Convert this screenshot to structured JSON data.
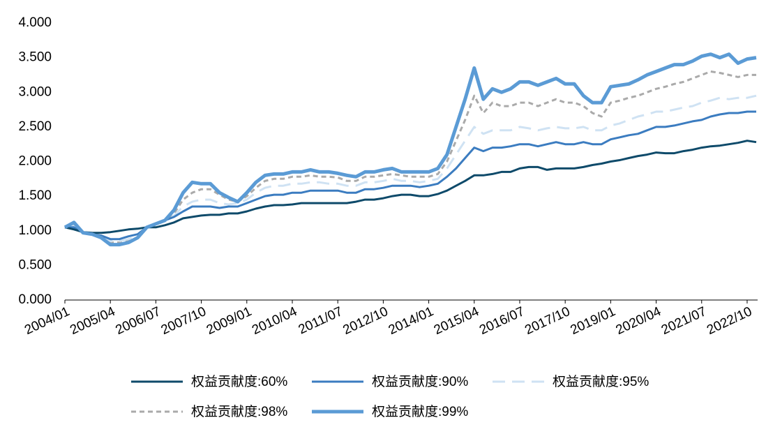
{
  "chart_data": {
    "type": "line",
    "categories": [
      "2004/01",
      null,
      null,
      null,
      null,
      "2005/04",
      null,
      null,
      null,
      null,
      "2006/07",
      null,
      null,
      null,
      null,
      "2007/10",
      null,
      null,
      null,
      null,
      "2009/01",
      null,
      null,
      null,
      null,
      "2010/04",
      null,
      null,
      null,
      null,
      "2011/07",
      null,
      null,
      null,
      null,
      "2012/10",
      null,
      null,
      null,
      null,
      "2014/01",
      null,
      null,
      null,
      null,
      "2015/04",
      null,
      null,
      null,
      null,
      "2016/07",
      null,
      null,
      null,
      null,
      "2017/10",
      null,
      null,
      null,
      null,
      "2019/01",
      null,
      null,
      null,
      null,
      "2020/04",
      null,
      null,
      null,
      null,
      "2021/07",
      null,
      null,
      null,
      null,
      "2022/10",
      null
    ],
    "ylim": [
      0,
      4
    ],
    "yticks": [
      {
        "value": 0,
        "label": "0.000"
      },
      {
        "value": 0.5,
        "label": "0.500"
      },
      {
        "value": 1,
        "label": "1.000"
      },
      {
        "value": 1.5,
        "label": "1.500"
      },
      {
        "value": 2,
        "label": "2.000"
      },
      {
        "value": 2.5,
        "label": "2.500"
      },
      {
        "value": 3,
        "label": "3.000"
      },
      {
        "value": 3.5,
        "label": "3.500"
      },
      {
        "value": 4,
        "label": "4.000"
      }
    ],
    "grid": false,
    "legend": "bottom",
    "series": [
      {
        "name": "权益贡献度:60%",
        "color": "#0e4a6a",
        "dash": "solid",
        "width": 3,
        "values": [
          1.05,
          1.02,
          0.98,
          0.97,
          0.97,
          0.98,
          1.0,
          1.02,
          1.03,
          1.05,
          1.05,
          1.08,
          1.12,
          1.18,
          1.2,
          1.22,
          1.23,
          1.23,
          1.25,
          1.25,
          1.28,
          1.32,
          1.35,
          1.37,
          1.37,
          1.38,
          1.4,
          1.4,
          1.4,
          1.4,
          1.4,
          1.4,
          1.42,
          1.45,
          1.45,
          1.47,
          1.5,
          1.52,
          1.52,
          1.5,
          1.5,
          1.53,
          1.58,
          1.65,
          1.72,
          1.8,
          1.8,
          1.82,
          1.85,
          1.85,
          1.9,
          1.92,
          1.92,
          1.88,
          1.9,
          1.9,
          1.9,
          1.92,
          1.95,
          1.97,
          2.0,
          2.02,
          2.05,
          2.08,
          2.1,
          2.13,
          2.12,
          2.12,
          2.15,
          2.17,
          2.2,
          2.22,
          2.23,
          2.25,
          2.27,
          2.3,
          2.28
        ]
      },
      {
        "name": "权益贡献度:90%",
        "color": "#3b7cc0",
        "dash": "solid",
        "width": 3,
        "values": [
          1.05,
          1.05,
          0.97,
          0.95,
          0.93,
          0.88,
          0.88,
          0.92,
          0.95,
          1.05,
          1.1,
          1.15,
          1.2,
          1.28,
          1.35,
          1.35,
          1.35,
          1.33,
          1.35,
          1.35,
          1.4,
          1.45,
          1.5,
          1.52,
          1.52,
          1.55,
          1.55,
          1.58,
          1.58,
          1.58,
          1.58,
          1.55,
          1.55,
          1.6,
          1.6,
          1.62,
          1.65,
          1.65,
          1.65,
          1.63,
          1.65,
          1.68,
          1.78,
          1.9,
          2.05,
          2.2,
          2.15,
          2.2,
          2.2,
          2.22,
          2.25,
          2.25,
          2.22,
          2.25,
          2.28,
          2.25,
          2.25,
          2.28,
          2.25,
          2.25,
          2.32,
          2.35,
          2.38,
          2.4,
          2.45,
          2.5,
          2.5,
          2.52,
          2.55,
          2.58,
          2.6,
          2.65,
          2.68,
          2.7,
          2.7,
          2.72,
          2.72
        ]
      },
      {
        "name": "权益贡献度:95%",
        "color": "#cfe2f3",
        "dash": "long",
        "width": 3,
        "values": [
          1.05,
          1.07,
          0.97,
          0.95,
          0.92,
          0.85,
          0.85,
          0.88,
          0.92,
          1.05,
          1.1,
          1.15,
          1.22,
          1.35,
          1.42,
          1.45,
          1.45,
          1.4,
          1.38,
          1.4,
          1.45,
          1.55,
          1.62,
          1.65,
          1.65,
          1.68,
          1.68,
          1.7,
          1.7,
          1.68,
          1.68,
          1.65,
          1.65,
          1.7,
          1.7,
          1.72,
          1.75,
          1.72,
          1.72,
          1.7,
          1.72,
          1.75,
          1.9,
          2.1,
          2.3,
          2.5,
          2.4,
          2.45,
          2.45,
          2.45,
          2.5,
          2.48,
          2.45,
          2.48,
          2.5,
          2.48,
          2.48,
          2.5,
          2.45,
          2.45,
          2.52,
          2.55,
          2.6,
          2.65,
          2.68,
          2.72,
          2.72,
          2.75,
          2.78,
          2.8,
          2.85,
          2.88,
          2.92,
          2.9,
          2.92,
          2.92,
          2.95
        ]
      },
      {
        "name": "权益贡献度:98%",
        "color": "#aaaaaa",
        "dash": "short",
        "width": 3,
        "values": [
          1.05,
          1.1,
          0.97,
          0.95,
          0.9,
          0.83,
          0.83,
          0.85,
          0.9,
          1.05,
          1.1,
          1.15,
          1.25,
          1.45,
          1.55,
          1.6,
          1.6,
          1.52,
          1.45,
          1.42,
          1.5,
          1.62,
          1.72,
          1.75,
          1.75,
          1.78,
          1.78,
          1.8,
          1.78,
          1.78,
          1.77,
          1.72,
          1.72,
          1.78,
          1.78,
          1.8,
          1.82,
          1.8,
          1.78,
          1.78,
          1.78,
          1.82,
          2.0,
          2.3,
          2.6,
          2.95,
          2.7,
          2.85,
          2.8,
          2.8,
          2.85,
          2.85,
          2.8,
          2.85,
          2.9,
          2.85,
          2.85,
          2.8,
          2.7,
          2.65,
          2.85,
          2.88,
          2.92,
          2.95,
          3.0,
          3.05,
          3.08,
          3.12,
          3.15,
          3.2,
          3.25,
          3.3,
          3.28,
          3.25,
          3.22,
          3.25,
          3.25
        ]
      },
      {
        "name": "权益贡献度:99%",
        "color": "#5b9bd5",
        "dash": "solid",
        "width": 5,
        "values": [
          1.05,
          1.12,
          0.97,
          0.95,
          0.9,
          0.8,
          0.8,
          0.83,
          0.9,
          1.05,
          1.1,
          1.15,
          1.3,
          1.55,
          1.7,
          1.68,
          1.68,
          1.55,
          1.48,
          1.42,
          1.55,
          1.7,
          1.8,
          1.82,
          1.82,
          1.85,
          1.85,
          1.88,
          1.85,
          1.85,
          1.83,
          1.8,
          1.78,
          1.85,
          1.85,
          1.88,
          1.9,
          1.85,
          1.85,
          1.85,
          1.85,
          1.9,
          2.1,
          2.5,
          2.9,
          3.35,
          2.9,
          3.05,
          3.0,
          3.05,
          3.15,
          3.15,
          3.1,
          3.15,
          3.2,
          3.12,
          3.12,
          2.95,
          2.85,
          2.85,
          3.08,
          3.1,
          3.12,
          3.18,
          3.25,
          3.3,
          3.35,
          3.4,
          3.4,
          3.45,
          3.52,
          3.55,
          3.5,
          3.55,
          3.42,
          3.48,
          3.5
        ]
      }
    ]
  }
}
